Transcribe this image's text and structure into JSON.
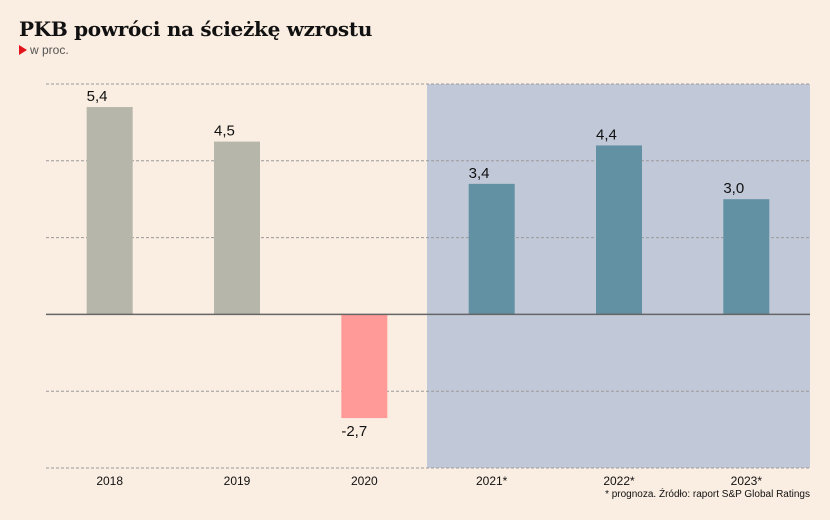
{
  "header": {
    "title": "PKB powróci na ścieżkę wzrostu",
    "subtitle": "w proc."
  },
  "footnote": "* prognoza. Źródło: raport S&P Global Ratings",
  "colors": {
    "background": "#faede1",
    "actual_bar": "#b7b6ab",
    "negative_bar": "#ff9a98",
    "forecast_bar": "#6191a2",
    "forecast_region": "#c1c8d8",
    "accent": "#e3131b"
  },
  "chart_data": {
    "type": "bar",
    "title": "PKB powróci na ścieżkę wzrostu",
    "subtitle": "w proc.",
    "xlabel": "",
    "ylabel": "",
    "categories": [
      "2018",
      "2019",
      "2020",
      "2021*",
      "2022*",
      "2023*"
    ],
    "values": [
      5.4,
      4.5,
      -2.7,
      3.4,
      4.4,
      3.0
    ],
    "value_labels": [
      "5,4",
      "4,5",
      "-2,7",
      "3,4",
      "4,4",
      "3,0"
    ],
    "forecast": [
      false,
      false,
      false,
      true,
      true,
      true
    ],
    "ylim": [
      -4,
      6
    ],
    "gridlines": [
      -4,
      -2,
      0,
      2,
      4,
      6
    ],
    "grid": true,
    "forecast_region_start": "2021*"
  }
}
